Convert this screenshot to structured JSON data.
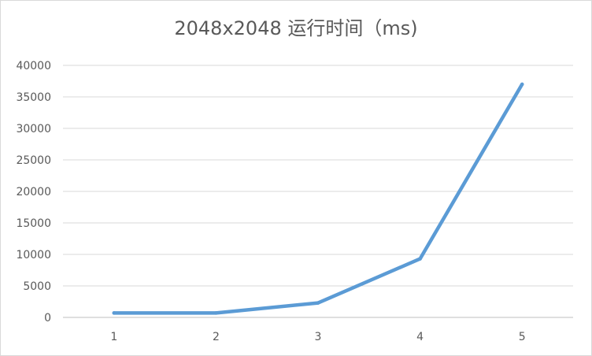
{
  "chart_data": {
    "type": "line",
    "title": "2048x2048 运行时间（ms)",
    "categories": [
      "1",
      "2",
      "3",
      "4",
      "5"
    ],
    "series": [
      {
        "values": [
          700,
          700,
          2300,
          9300,
          37000
        ],
        "color": "#5b9bd5"
      }
    ],
    "xlabel": "",
    "ylabel": "",
    "ylim": [
      0,
      40000
    ],
    "yticks": [
      "0",
      "5000",
      "10000",
      "15000",
      "20000",
      "25000",
      "30000",
      "35000",
      "40000"
    ],
    "grid": true,
    "legend": "none"
  }
}
